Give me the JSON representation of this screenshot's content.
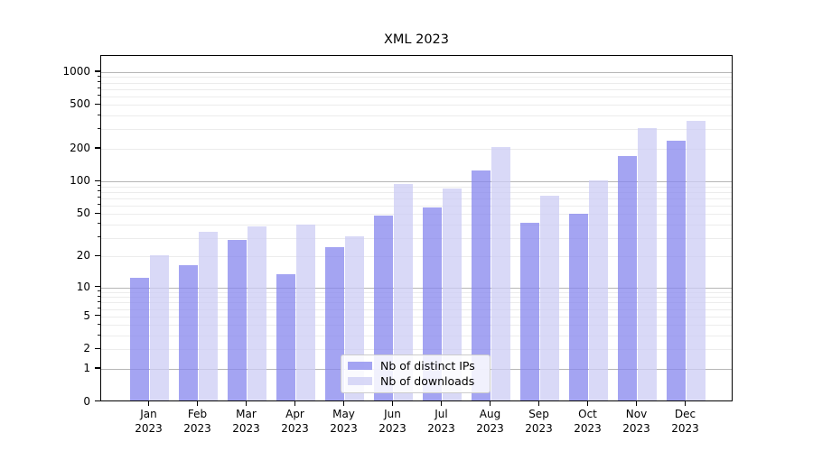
{
  "title": "XML 2023",
  "chart_data": {
    "type": "bar",
    "title": "XML 2023",
    "y_scale": "log1p",
    "categories": [
      "Jan 2023",
      "Feb 2023",
      "Mar 2023",
      "Apr 2023",
      "May 2023",
      "Jun 2023",
      "Jul 2023",
      "Aug 2023",
      "Sep 2023",
      "Oct 2023",
      "Nov 2023",
      "Dec 2023"
    ],
    "series": [
      {
        "name": "Nb of distinct IPs",
        "color": "#8686ee",
        "values": [
          12,
          16,
          28,
          13,
          24,
          47,
          56,
          123,
          40,
          49,
          165,
          228
        ]
      },
      {
        "name": "Nb of downloads",
        "color": "#ccccf4",
        "values": [
          20,
          33,
          37,
          39,
          30,
          93,
          84,
          200,
          72,
          100,
          300,
          350
        ]
      }
    ],
    "y_ticks": [
      0,
      1,
      2,
      5,
      10,
      20,
      50,
      100,
      200,
      500,
      1000
    ],
    "ylim": [
      0,
      1400
    ],
    "grid": true,
    "legend_position": "lower center",
    "major_grid_color": "#b6b6b6",
    "minor_grid_color": "#ececec"
  }
}
